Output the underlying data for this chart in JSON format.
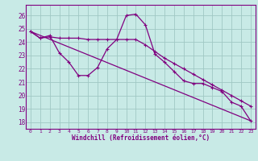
{
  "xlabel": "Windchill (Refroidissement éolien,°C)",
  "bg_color": "#c8eae6",
  "line_color": "#800080",
  "grid_color": "#a0c8c4",
  "axis_color": "#800080",
  "series1_y": [
    24.8,
    24.3,
    24.5,
    23.2,
    22.5,
    21.5,
    21.5,
    22.1,
    23.5,
    24.2,
    26.0,
    26.1,
    25.3,
    23.1,
    22.5,
    21.8,
    21.1,
    20.9,
    20.9,
    20.6,
    20.3,
    19.5,
    19.2,
    18.1
  ],
  "series2_y": [
    24.8,
    24.3,
    24.4,
    24.3,
    24.3,
    24.3,
    24.2,
    24.2,
    24.2,
    24.2,
    24.2,
    24.2,
    23.8,
    23.3,
    22.8,
    22.4,
    22.0,
    21.6,
    21.2,
    20.8,
    20.4,
    20.0,
    19.6,
    19.2
  ],
  "series3_y": [
    24.8,
    18.1
  ],
  "series3_x": [
    0,
    23
  ],
  "ylim": [
    17.5,
    26.8
  ],
  "xlim": [
    -0.5,
    23.5
  ],
  "yticks": [
    18,
    19,
    20,
    21,
    22,
    23,
    24,
    25,
    26
  ],
  "xtick_labels": [
    "0",
    "1",
    "2",
    "3",
    "4",
    "5",
    "6",
    "7",
    "8",
    "9",
    "10",
    "11",
    "12",
    "13",
    "14",
    "15",
    "16",
    "17",
    "18",
    "19",
    "20",
    "21",
    "22",
    "23"
  ]
}
